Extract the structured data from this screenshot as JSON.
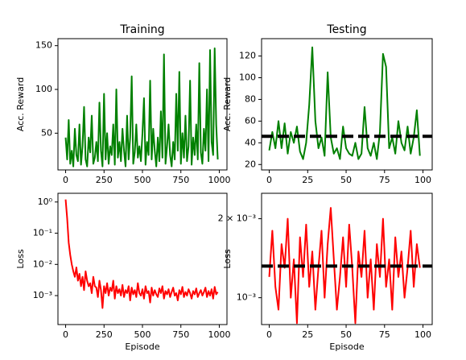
{
  "chart_data": [
    {
      "type": "line",
      "title": "Training",
      "ylabel": "Acc. Reward",
      "x": [
        0,
        10,
        20,
        30,
        40,
        50,
        60,
        70,
        80,
        90,
        100,
        110,
        120,
        130,
        140,
        150,
        160,
        170,
        180,
        190,
        200,
        210,
        220,
        230,
        240,
        250,
        260,
        270,
        280,
        290,
        300,
        310,
        320,
        330,
        340,
        350,
        360,
        370,
        380,
        390,
        400,
        410,
        420,
        430,
        440,
        450,
        460,
        470,
        480,
        490,
        500,
        510,
        520,
        530,
        540,
        550,
        560,
        570,
        580,
        590,
        600,
        610,
        620,
        630,
        640,
        650,
        660,
        670,
        680,
        690,
        700,
        710,
        720,
        730,
        740,
        750,
        760,
        770,
        780,
        790,
        800,
        810,
        820,
        830,
        840,
        850,
        860,
        870,
        880,
        890,
        900,
        910,
        920,
        930,
        940,
        950,
        960,
        970,
        980,
        990
      ],
      "series": [
        {
          "color": "#008000",
          "values": [
            45,
            20,
            65,
            15,
            30,
            12,
            55,
            25,
            18,
            60,
            14,
            35,
            80,
            20,
            12,
            45,
            28,
            70,
            15,
            22,
            40,
            18,
            85,
            30,
            12,
            95,
            20,
            50,
            15,
            35,
            25,
            60,
            14,
            100,
            22,
            40,
            18,
            55,
            30,
            12,
            70,
            20,
            45,
            115,
            15,
            28,
            60,
            22,
            35,
            18,
            50,
            90,
            14,
            40,
            25,
            110,
            20,
            55,
            30,
            12,
            45,
            18,
            75,
            22,
            140,
            15,
            35,
            60,
            25,
            12,
            40,
            20,
            95,
            30,
            120,
            15,
            50,
            22,
            70,
            18,
            35,
            110,
            14,
            45,
            25,
            60,
            20,
            130,
            28,
            15,
            55,
            30,
            100,
            18,
            145,
            40,
            25,
            147,
            60,
            20
          ]
        }
      ],
      "xlim": [
        -50,
        1050
      ],
      "xticks": [
        0,
        250,
        500,
        750,
        1000
      ],
      "ylim": [
        8,
        158
      ],
      "yticks": [
        50,
        100,
        150
      ]
    },
    {
      "type": "line",
      "title": "Testing",
      "ylabel": "Acc. Reward",
      "x": [
        0,
        2,
        4,
        6,
        8,
        10,
        12,
        14,
        16,
        18,
        20,
        22,
        24,
        26,
        28,
        30,
        32,
        34,
        36,
        38,
        40,
        42,
        44,
        46,
        48,
        50,
        52,
        54,
        56,
        58,
        60,
        62,
        64,
        66,
        68,
        70,
        72,
        74,
        76,
        78,
        80,
        82,
        84,
        86,
        88,
        90,
        92,
        94,
        96,
        98
      ],
      "series": [
        {
          "color": "#008000",
          "values": [
            33,
            50,
            35,
            60,
            35,
            58,
            30,
            50,
            40,
            55,
            32,
            25,
            40,
            75,
            128,
            60,
            35,
            45,
            28,
            105,
            45,
            30,
            35,
            25,
            55,
            35,
            30,
            28,
            40,
            25,
            30,
            73,
            35,
            28,
            40,
            25,
            50,
            122,
            110,
            35,
            45,
            30,
            60,
            40,
            33,
            55,
            30,
            45,
            70,
            28
          ]
        }
      ],
      "hline": 46,
      "xlim": [
        -5,
        106
      ],
      "xticks": [
        0,
        25,
        50,
        75,
        100
      ],
      "ylim": [
        15,
        136
      ],
      "yticks": [
        20,
        40,
        60,
        80,
        100,
        120
      ]
    },
    {
      "type": "line",
      "xlabel": "Episode",
      "ylabel": "Loss",
      "log_y": true,
      "x": [
        0,
        10,
        20,
        30,
        40,
        50,
        60,
        70,
        80,
        90,
        100,
        110,
        120,
        130,
        140,
        150,
        160,
        170,
        180,
        190,
        200,
        210,
        220,
        230,
        240,
        250,
        260,
        270,
        280,
        290,
        300,
        310,
        320,
        330,
        340,
        350,
        360,
        370,
        380,
        390,
        400,
        410,
        420,
        430,
        440,
        450,
        460,
        470,
        480,
        490,
        500,
        510,
        520,
        530,
        540,
        550,
        560,
        570,
        580,
        590,
        600,
        610,
        620,
        630,
        640,
        650,
        660,
        670,
        680,
        690,
        700,
        710,
        720,
        730,
        740,
        750,
        760,
        770,
        780,
        790,
        800,
        810,
        820,
        830,
        840,
        850,
        860,
        870,
        880,
        890,
        900,
        910,
        920,
        930,
        940,
        950,
        960,
        970,
        980,
        990
      ],
      "series": [
        {
          "color": "#ff0000",
          "values": [
            1.2,
            0.3,
            0.05,
            0.02,
            0.01,
            0.006,
            0.004,
            0.008,
            0.003,
            0.005,
            0.002,
            0.004,
            0.0015,
            0.006,
            0.003,
            0.002,
            0.0025,
            0.0012,
            0.004,
            0.002,
            0.0018,
            0.0009,
            0.003,
            0.0015,
            0.0004,
            0.002,
            0.0012,
            0.0025,
            0.001,
            0.0018,
            0.0014,
            0.003,
            0.0008,
            0.002,
            0.0012,
            0.0016,
            0.001,
            0.0022,
            0.0009,
            0.0015,
            0.0012,
            0.002,
            0.0007,
            0.0018,
            0.0011,
            0.0015,
            0.0009,
            0.0025,
            0.0012,
            0.001,
            0.0016,
            0.0008,
            0.002,
            0.0012,
            0.0014,
            0.0006,
            0.0018,
            0.001,
            0.0015,
            0.0011,
            0.0009,
            0.0017,
            0.0012,
            0.002,
            0.0008,
            0.0014,
            0.0011,
            0.0016,
            0.0009,
            0.0013,
            0.0018,
            0.001,
            0.0012,
            0.0007,
            0.0015,
            0.0011,
            0.0019,
            0.0009,
            0.0013,
            0.001,
            0.0016,
            0.0012,
            0.0008,
            0.0014,
            0.0011,
            0.0017,
            0.0009,
            0.0012,
            0.0015,
            0.001,
            0.0013,
            0.0018,
            0.0009,
            0.0014,
            0.001,
            0.0016,
            0.0008,
            0.0019,
            0.0011,
            0.0013
          ]
        }
      ],
      "xlim": [
        -50,
        1050
      ],
      "xticks": [
        0,
        250,
        500,
        750,
        1000
      ],
      "ylim": [
        0.000118,
        1.9
      ],
      "yticks": [
        {
          "value": 1,
          "label": "10⁰"
        },
        {
          "value": 0.1,
          "label": "10⁻¹"
        },
        {
          "value": 0.01,
          "label": "10⁻²"
        },
        {
          "value": 0.001,
          "label": "10⁻³"
        }
      ]
    },
    {
      "type": "line",
      "xlabel": "Episode",
      "ylabel": "Loss",
      "log_y": true,
      "x": [
        0,
        2,
        4,
        6,
        8,
        10,
        12,
        14,
        16,
        18,
        20,
        22,
        24,
        26,
        28,
        30,
        32,
        34,
        36,
        38,
        40,
        42,
        44,
        46,
        48,
        50,
        52,
        54,
        56,
        58,
        60,
        62,
        64,
        66,
        68,
        70,
        72,
        74,
        76,
        78,
        80,
        82,
        84,
        86,
        88,
        90,
        92,
        94,
        96,
        98
      ],
      "series": [
        {
          "color": "#ff0000",
          "values": [
            0.0012,
            0.0018,
            0.0011,
            0.0009,
            0.0016,
            0.0013,
            0.002,
            0.001,
            0.0014,
            0.0008,
            0.0017,
            0.0012,
            0.0019,
            0.0011,
            0.0015,
            0.0009,
            0.0013,
            0.0018,
            0.001,
            0.0016,
            0.0022,
            0.0014,
            0.0009,
            0.0012,
            0.0017,
            0.0011,
            0.0019,
            0.0013,
            0.0008,
            0.0015,
            0.0012,
            0.0018,
            0.001,
            0.0014,
            0.0009,
            0.0016,
            0.0012,
            0.002,
            0.0011,
            0.0014,
            0.0009,
            0.0017,
            0.0012,
            0.0015,
            0.001,
            0.0013,
            0.0018,
            0.0011,
            0.0016,
            0.0013
          ]
        }
      ],
      "hline": 0.00132,
      "xlim": [
        -5,
        106
      ],
      "xticks": [
        0,
        25,
        50,
        75,
        100
      ],
      "ylim": [
        0.00079,
        0.0025
      ],
      "yticks": [
        {
          "value": 0.002,
          "label": "2 × 10⁻³"
        },
        {
          "value": 0.001,
          "label": "10⁻³"
        }
      ]
    }
  ]
}
